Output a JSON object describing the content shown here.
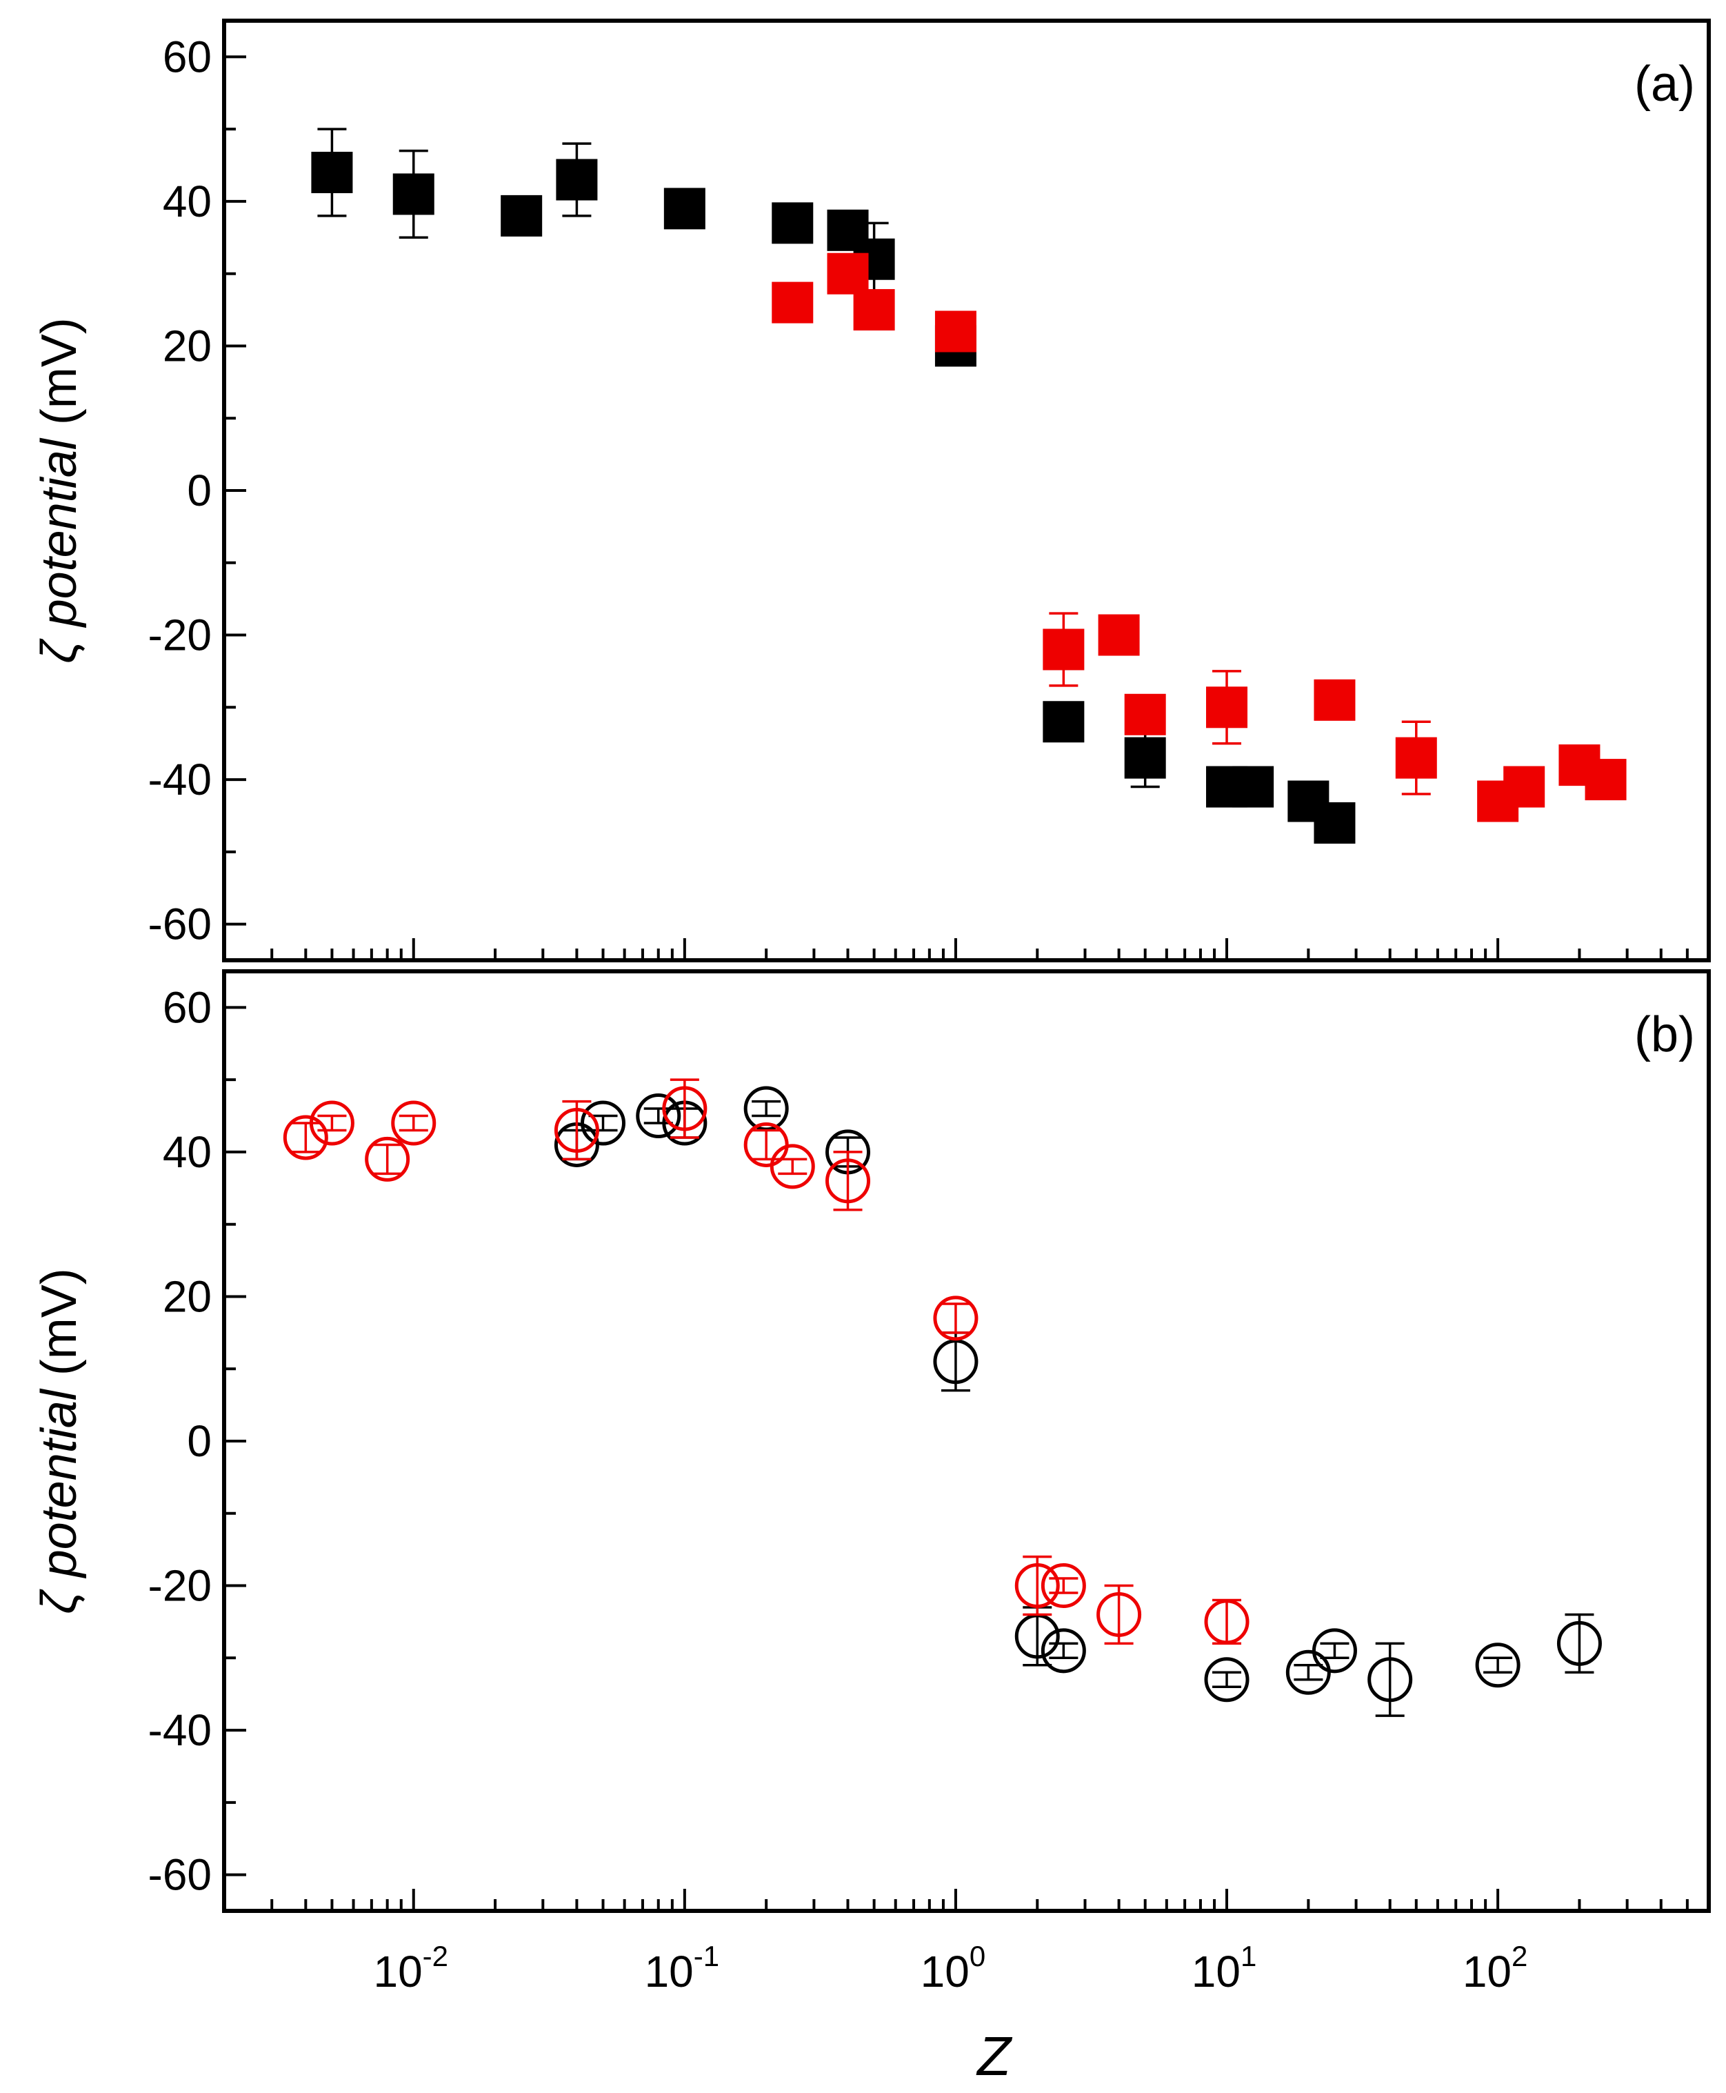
{
  "chart_data": [
    {
      "panel": "(a)",
      "type": "scatter",
      "xscale": "log",
      "xlim": [
        0.002,
        600
      ],
      "ylim": [
        -65,
        65
      ],
      "yticks": [
        60,
        40,
        20,
        0,
        -20,
        -40,
        -60
      ],
      "ylabel_symbol": "ζ",
      "ylabel_italic": "potential",
      "ylabel_unit": " (mV)",
      "legend": "none",
      "series": [
        {
          "name": "black filled squares",
          "marker": "square-filled",
          "color": "#000000",
          "points": [
            {
              "x": 0.005,
              "y": 44,
              "err": 6
            },
            {
              "x": 0.01,
              "y": 41,
              "err": 6
            },
            {
              "x": 0.025,
              "y": 38,
              "err": 1
            },
            {
              "x": 0.04,
              "y": 43,
              "err": 5
            },
            {
              "x": 0.1,
              "y": 39,
              "err": 1
            },
            {
              "x": 0.25,
              "y": 37,
              "err": 1
            },
            {
              "x": 0.4,
              "y": 36,
              "err": 1
            },
            {
              "x": 0.5,
              "y": 32,
              "err": 5
            },
            {
              "x": 1.0,
              "y": 20,
              "err": 2
            },
            {
              "x": 2.5,
              "y": -32,
              "err": 1
            },
            {
              "x": 5,
              "y": -37,
              "err": 4
            },
            {
              "x": 10,
              "y": -41,
              "err": 1
            },
            {
              "x": 12.5,
              "y": -41,
              "err": 1
            },
            {
              "x": 20,
              "y": -43,
              "err": 1
            },
            {
              "x": 25,
              "y": -46,
              "err": 1
            }
          ]
        },
        {
          "name": "red filled squares",
          "marker": "square-filled",
          "color": "#ee0000",
          "points": [
            {
              "x": 0.25,
              "y": 26,
              "err": 1
            },
            {
              "x": 0.4,
              "y": 30,
              "err": 2
            },
            {
              "x": 0.5,
              "y": 25,
              "err": 1
            },
            {
              "x": 1.0,
              "y": 22,
              "err": 1
            },
            {
              "x": 2.5,
              "y": -22,
              "err": 5
            },
            {
              "x": 4,
              "y": -20,
              "err": 1
            },
            {
              "x": 5,
              "y": -31,
              "err": 1
            },
            {
              "x": 10,
              "y": -30,
              "err": 5
            },
            {
              "x": 25,
              "y": -29,
              "err": 1
            },
            {
              "x": 50,
              "y": -37,
              "err": 5
            },
            {
              "x": 100,
              "y": -43,
              "err": 1
            },
            {
              "x": 125,
              "y": -41,
              "err": 1
            },
            {
              "x": 200,
              "y": -38,
              "err": 1
            },
            {
              "x": 250,
              "y": -40,
              "err": 1
            }
          ]
        }
      ]
    },
    {
      "panel": "(b)",
      "type": "scatter",
      "xscale": "log",
      "xlim": [
        0.002,
        600
      ],
      "ylim": [
        -65,
        65
      ],
      "yticks": [
        60,
        40,
        20,
        0,
        -20,
        -40,
        -60
      ],
      "ylabel_symbol": "ζ",
      "ylabel_italic": "potential",
      "ylabel_unit": "  (mV)",
      "xlabel": "Z",
      "xticks": [
        {
          "value": 0.01,
          "base": "10",
          "exp": "-2"
        },
        {
          "value": 0.1,
          "base": "10",
          "exp": "-1"
        },
        {
          "value": 1,
          "base": "10",
          "exp": "0"
        },
        {
          "value": 10,
          "base": "10",
          "exp": "1"
        },
        {
          "value": 100,
          "base": "10",
          "exp": "2"
        }
      ],
      "legend": "none",
      "series": [
        {
          "name": "black open circles",
          "marker": "circle-open",
          "color": "#000000",
          "points": [
            {
              "x": 0.04,
              "y": 41,
              "err": 2
            },
            {
              "x": 0.05,
              "y": 44,
              "err": 1
            },
            {
              "x": 0.08,
              "y": 45,
              "err": 1
            },
            {
              "x": 0.1,
              "y": 44,
              "err": 2
            },
            {
              "x": 0.2,
              "y": 46,
              "err": 1
            },
            {
              "x": 0.4,
              "y": 40,
              "err": 2
            },
            {
              "x": 1.0,
              "y": 11,
              "err": 4
            },
            {
              "x": 2.0,
              "y": -27,
              "err": 4
            },
            {
              "x": 2.5,
              "y": -29,
              "err": 1
            },
            {
              "x": 10,
              "y": -33,
              "err": 1
            },
            {
              "x": 20,
              "y": -32,
              "err": 1
            },
            {
              "x": 25,
              "y": -29,
              "err": 1
            },
            {
              "x": 40,
              "y": -33,
              "err": 5
            },
            {
              "x": 100,
              "y": -31,
              "err": 1
            },
            {
              "x": 200,
              "y": -28,
              "err": 4
            }
          ]
        },
        {
          "name": "red open circles",
          "marker": "circle-open",
          "color": "#ee0000",
          "points": [
            {
              "x": 0.004,
              "y": 42,
              "err": 2
            },
            {
              "x": 0.005,
              "y": 44,
              "err": 1
            },
            {
              "x": 0.008,
              "y": 39,
              "err": 2
            },
            {
              "x": 0.01,
              "y": 44,
              "err": 1
            },
            {
              "x": 0.04,
              "y": 43,
              "err": 4
            },
            {
              "x": 0.1,
              "y": 46,
              "err": 4
            },
            {
              "x": 0.2,
              "y": 41,
              "err": 2
            },
            {
              "x": 0.25,
              "y": 38,
              "err": 1
            },
            {
              "x": 0.4,
              "y": 36,
              "err": 4
            },
            {
              "x": 1.0,
              "y": 17,
              "err": 2
            },
            {
              "x": 2.0,
              "y": -20,
              "err": 4
            },
            {
              "x": 2.5,
              "y": -20,
              "err": 1
            },
            {
              "x": 4,
              "y": -24,
              "err": 4
            },
            {
              "x": 10,
              "y": -25,
              "err": 3
            }
          ]
        }
      ]
    }
  ]
}
